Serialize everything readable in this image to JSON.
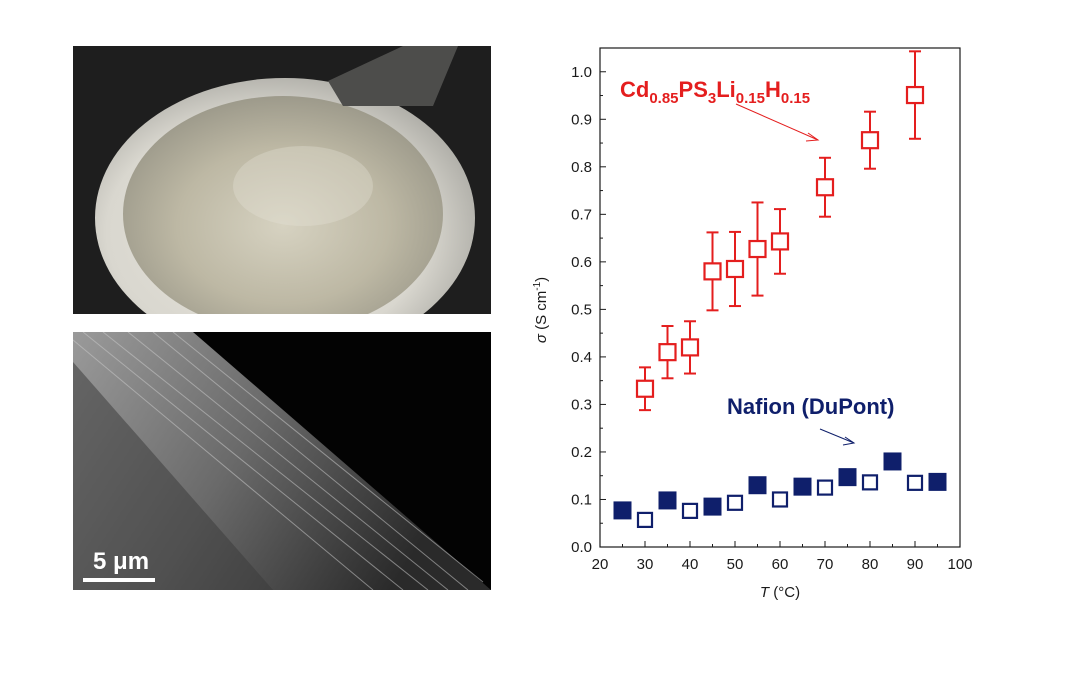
{
  "figure": {
    "scale_bar_label": "5 μm"
  },
  "chart_data": {
    "type": "scatter",
    "xlabel_symbol": "T",
    "xlabel_unit": " (°C)",
    "ylabel_symbol": "σ",
    "ylabel_unit": " (S cm",
    "ylabel_exp": "-1",
    "ylabel_close": ")",
    "xlim": [
      20,
      100
    ],
    "ylim": [
      0.0,
      1.05
    ],
    "x_ticks": [
      20,
      30,
      40,
      50,
      60,
      70,
      80,
      90,
      100
    ],
    "y_ticks": [
      "0.0",
      "0.1",
      "0.2",
      "0.3",
      "0.4",
      "0.5",
      "0.6",
      "0.7",
      "0.8",
      "0.9",
      "1.0"
    ],
    "grid": false,
    "colors": {
      "red": "#e41e1e",
      "blue": "#0f1f6b"
    },
    "series": [
      {
        "name": "Cd0.85PS3Li0.15H0.15",
        "label_parts": [
          {
            "t": "Cd",
            "sub": false
          },
          {
            "t": "0.85",
            "sub": true
          },
          {
            "t": "PS",
            "sub": false
          },
          {
            "t": "3",
            "sub": true
          },
          {
            "t": "Li",
            "sub": false
          },
          {
            "t": "0.15",
            "sub": true
          },
          {
            "t": "H",
            "sub": false
          },
          {
            "t": "0.15",
            "sub": true
          }
        ],
        "marker": "open-square",
        "color": "#e41e1e",
        "x": [
          30,
          35,
          40,
          45,
          50,
          55,
          60,
          70,
          80,
          90
        ],
        "y": [
          0.333,
          0.41,
          0.42,
          0.58,
          0.585,
          0.627,
          0.643,
          0.757,
          0.856,
          0.951
        ],
        "err": [
          0.045,
          0.055,
          0.055,
          0.082,
          0.078,
          0.098,
          0.068,
          0.062,
          0.06,
          0.092
        ]
      },
      {
        "name": "Nafion (DuPont)",
        "marker": "square",
        "color": "#0f1f6b",
        "points": [
          {
            "x": 25,
            "y": 0.077,
            "filled": true
          },
          {
            "x": 30,
            "y": 0.057,
            "filled": false
          },
          {
            "x": 35,
            "y": 0.098,
            "filled": true
          },
          {
            "x": 40,
            "y": 0.076,
            "filled": false
          },
          {
            "x": 45,
            "y": 0.085,
            "filled": true
          },
          {
            "x": 50,
            "y": 0.093,
            "filled": false
          },
          {
            "x": 55,
            "y": 0.13,
            "filled": true
          },
          {
            "x": 60,
            "y": 0.1,
            "filled": false
          },
          {
            "x": 65,
            "y": 0.127,
            "filled": true
          },
          {
            "x": 70,
            "y": 0.125,
            "filled": false
          },
          {
            "x": 75,
            "y": 0.147,
            "filled": true
          },
          {
            "x": 80,
            "y": 0.136,
            "filled": false
          },
          {
            "x": 85,
            "y": 0.18,
            "filled": true
          },
          {
            "x": 90,
            "y": 0.135,
            "filled": false
          },
          {
            "x": 95,
            "y": 0.137,
            "filled": true
          }
        ]
      }
    ]
  }
}
